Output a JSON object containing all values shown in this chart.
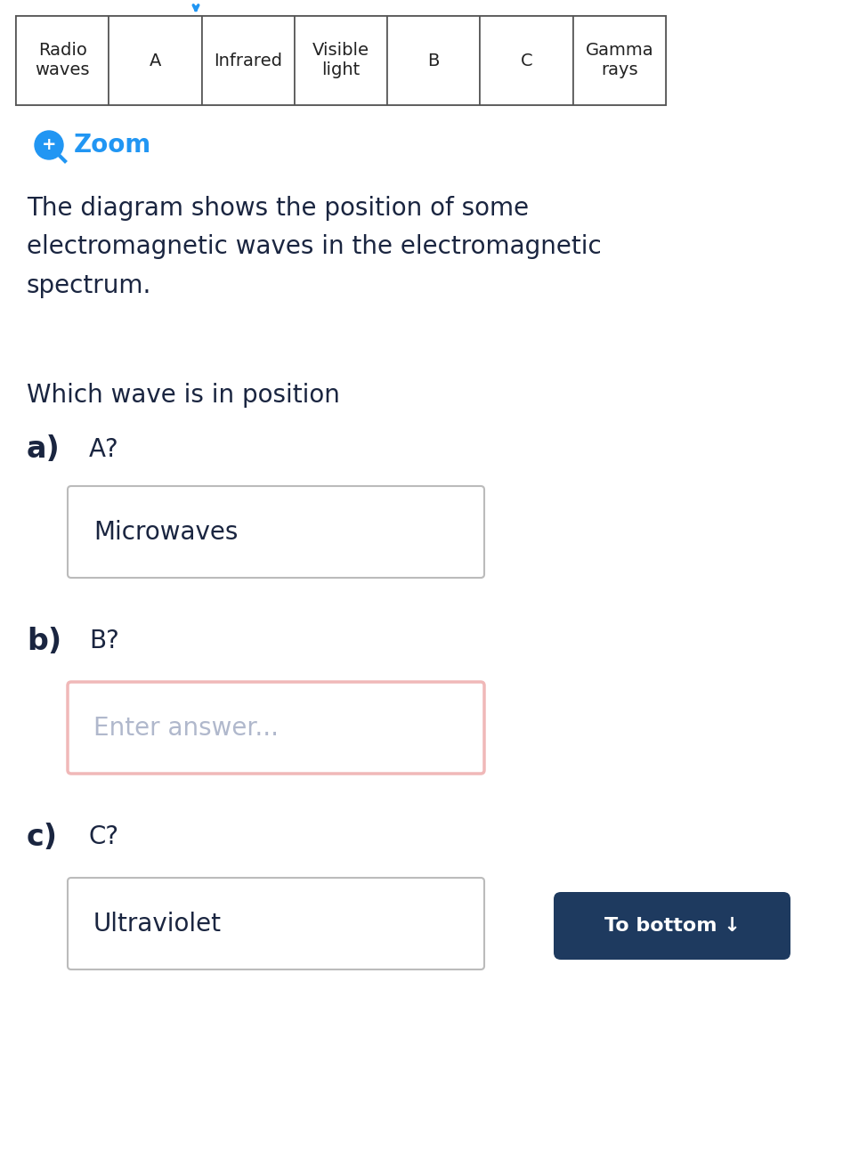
{
  "bg_color": "#ffffff",
  "table_cells": [
    "Radio\nwaves",
    "A",
    "Infrared",
    "Visible\nlight",
    "B",
    "C",
    "Gamma\nrays"
  ],
  "table_cell_count": 7,
  "table_text_color": "#222222",
  "table_font_size": 14,
  "zoom_icon_color": "#2196f3",
  "zoom_text": "Zoom",
  "zoom_text_color": "#2196f3",
  "zoom_font_size": 20,
  "desc_text": "The diagram shows the position of some\nelectromagnetic waves in the electromagnetic\nspectrum.",
  "desc_font_size": 20,
  "desc_color": "#1a2540",
  "question_text": "Which wave is in position",
  "question_font_size": 20,
  "question_color": "#1a2540",
  "part_a_label": "a)",
  "part_a_question": "A?",
  "part_a_answer": "Microwaves",
  "part_b_label": "b)",
  "part_b_question": "B?",
  "part_b_answer": "Enter answer...",
  "part_b_answer_color": "#b0b8cc",
  "part_b_box_outline_color": "#f0b8b8",
  "part_c_label": "c)",
  "part_c_question": "C?",
  "part_c_answer": "Ultraviolet",
  "label_font_size": 24,
  "label_color": "#1a2540",
  "answer_font_size": 20,
  "answer_color": "#1a2540",
  "box_outline_color": "#bbbbbb",
  "box_fill": "#ffffff",
  "btn_text": "To bottom ↓",
  "btn_color": "#1e3a5f",
  "btn_text_color": "#ffffff",
  "btn_font_size": 16
}
